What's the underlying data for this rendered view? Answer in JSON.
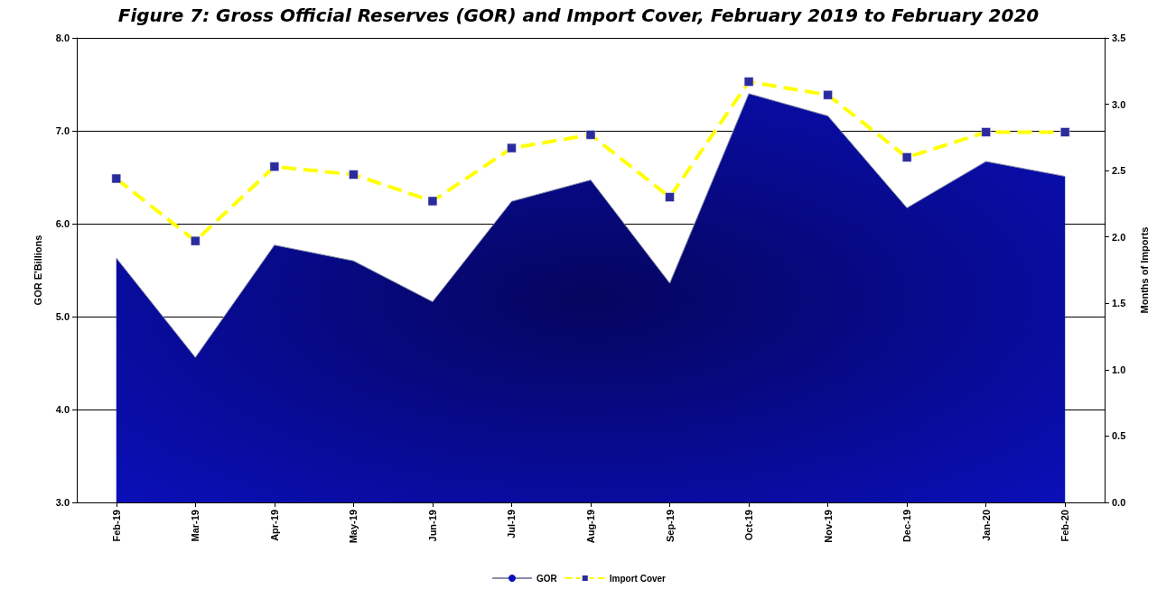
{
  "chart_data": {
    "type": "area",
    "title": "Figure 7: Gross Official Reserves (GOR) and Import Cover, February 2019 to February 2020",
    "categories": [
      "Feb-19",
      "Mar-19",
      "Apr-19",
      "May-19",
      "Jun-19",
      "Jul-19",
      "Aug-19",
      "Sep-19",
      "Oct-19",
      "Nov-19",
      "Dec-19",
      "Jan-20",
      "Feb-20"
    ],
    "series": [
      {
        "name": "GOR",
        "color": "#0a0fb8",
        "values": [
          5.63,
          4.56,
          5.77,
          5.6,
          5.16,
          6.24,
          6.47,
          5.36,
          7.4,
          7.16,
          6.17,
          6.67,
          6.51
        ]
      },
      {
        "name": "Import Cover",
        "type": "line",
        "axis": "y2",
        "color": "#ffff00",
        "line_style": "dashed",
        "marker": "square",
        "values": [
          2.44,
          1.97,
          2.53,
          2.47,
          2.27,
          2.67,
          2.77,
          2.3,
          3.17,
          3.07,
          2.6,
          2.79,
          2.79
        ]
      }
    ],
    "ylabel": "GOR E'Billions",
    "y2label": "Months of Imports",
    "ylim": [
      3,
      8
    ],
    "yticks": [
      {
        "value": 3,
        "label": "3.0"
      },
      {
        "value": 4,
        "label": "4.0"
      },
      {
        "value": 5,
        "label": "5.0"
      },
      {
        "value": 6,
        "label": "6.0"
      },
      {
        "value": 7,
        "label": "7.0"
      },
      {
        "value": 8,
        "label": "8.0"
      }
    ],
    "y2lim": [
      0,
      3.5
    ],
    "y2ticks": [
      {
        "value": 0,
        "label": "0.0"
      },
      {
        "value": 0.5,
        "label": "0.5"
      },
      {
        "value": 1,
        "label": "1.0"
      },
      {
        "value": 1.5,
        "label": "1.5"
      },
      {
        "value": 2,
        "label": "2.0"
      },
      {
        "value": 2.5,
        "label": "2.5"
      },
      {
        "value": 3,
        "label": "3.0"
      },
      {
        "value": 3.5,
        "label": "3.5"
      }
    ],
    "grid": "y",
    "legend": "bottom"
  }
}
